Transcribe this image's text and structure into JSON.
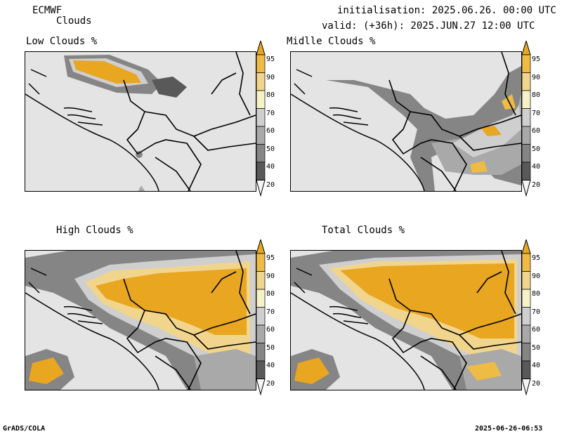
{
  "header": {
    "model": "ECMWF",
    "field": "Clouds",
    "init": "initialisation: 2025.06.26. 00:00 UTC",
    "valid": "valid: (+36h): 2025.JUN.27 12:00 UTC"
  },
  "panels": [
    {
      "title": "Low Clouds %"
    },
    {
      "title": "Midlle Clouds %"
    },
    {
      "title": "High Clouds %"
    },
    {
      "title": "Total Clouds %"
    }
  ],
  "legend": {
    "levels": [
      "95",
      "90",
      "80",
      "70",
      "60",
      "50",
      "40",
      "20"
    ],
    "colors": [
      "#e8a621",
      "#eebb45",
      "#f2d58c",
      "#f6f2c8",
      "#cfcfcf",
      "#a9a9a9",
      "#858585",
      "#595959",
      "#f5f5f5"
    ]
  },
  "footer": {
    "software": "GrADS/COLA",
    "timestamp": "2025-06-26-06:53"
  }
}
